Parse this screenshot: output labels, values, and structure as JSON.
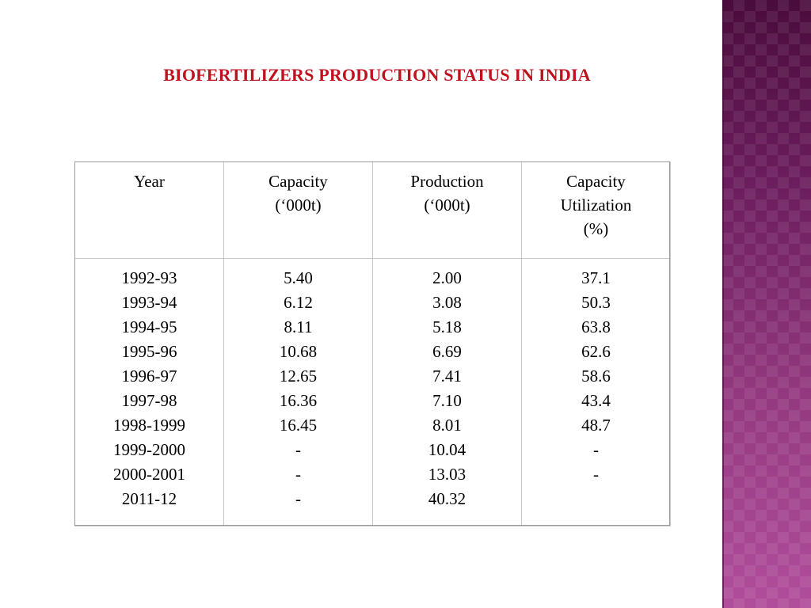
{
  "title": "BIOFERTILIZERS PRODUCTION STATUS IN INDIA",
  "colors": {
    "title": "#c0111f",
    "side_band": "#7a2468"
  },
  "table": {
    "columns": [
      {
        "lines": [
          "Year"
        ]
      },
      {
        "lines": [
          "Capacity",
          "(‘000t)"
        ]
      },
      {
        "lines": [
          "Production",
          "(‘000t)"
        ]
      },
      {
        "lines": [
          "Capacity",
          "Utilization",
          "(%)"
        ]
      }
    ],
    "rows": [
      [
        "1992-93",
        "5.40",
        "2.00",
        "37.1"
      ],
      [
        "1993-94",
        "6.12",
        "3.08",
        "50.3"
      ],
      [
        "1994-95",
        "8.11",
        "5.18",
        "63.8"
      ],
      [
        "1995-96",
        "10.68",
        "6.69",
        "62.6"
      ],
      [
        "1996-97",
        "12.65",
        "7.41",
        "58.6"
      ],
      [
        "1997-98",
        "16.36",
        "7.10",
        "43.4"
      ],
      [
        "1998-1999",
        "16.45",
        "8.01",
        "48.7"
      ],
      [
        "1999-2000",
        "-",
        "10.04",
        "-"
      ],
      [
        "2000-2001",
        "-",
        "13.03",
        "-"
      ],
      [
        "2011-12",
        "-",
        "40.32",
        ""
      ]
    ]
  }
}
